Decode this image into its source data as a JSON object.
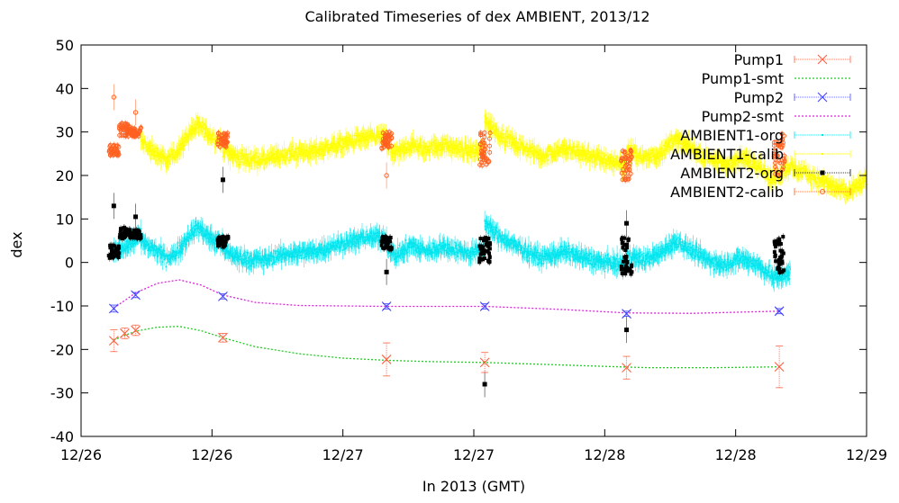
{
  "chart_data": {
    "type": "scatter",
    "title": "Calibrated Timeseries of dex AMBIENT, 2013/12",
    "xlabel": "In 2013 (GMT)",
    "ylabel": "dex",
    "xlim": [
      "2013-12-26T00:00",
      "2013-12-29T00:00"
    ],
    "ylim": [
      -40,
      50
    ],
    "y_ticks": [
      -40,
      -30,
      -20,
      -10,
      0,
      10,
      20,
      30,
      40,
      50
    ],
    "x_ticks": [
      {
        "t": "2013-12-26T00:00",
        "label": "12/26"
      },
      {
        "t": "2013-12-26T12:00",
        "label": "12/26"
      },
      {
        "t": "2013-12-27T00:00",
        "label": "12/27"
      },
      {
        "t": "2013-12-27T12:00",
        "label": "12/27"
      },
      {
        "t": "2013-12-28T00:00",
        "label": "12/28"
      },
      {
        "t": "2013-12-28T12:00",
        "label": "12/28"
      },
      {
        "t": "2013-12-29T00:00",
        "label": "12/29"
      },
      {
        "t": "2013-12-29T12:00",
        "label": "12/29"
      }
    ],
    "grid": false,
    "legend_position": "top-right",
    "series": [
      {
        "name": "Pump1",
        "style": "points-errorbars",
        "marker": "x",
        "color": "#ff6040",
        "points": [
          {
            "t": "2013-12-26T03:00",
            "y": -18.0,
            "err": 2.5
          },
          {
            "t": "2013-12-26T04:00",
            "y": -16.3,
            "err": 1.2
          },
          {
            "t": "2013-12-26T05:00",
            "y": -15.6,
            "err": 1.2
          },
          {
            "t": "2013-12-26T13:00",
            "y": -17.3,
            "err": 1.0
          },
          {
            "t": "2013-12-27T04:00",
            "y": -22.3,
            "err": 3.8
          },
          {
            "t": "2013-12-27T13:00",
            "y": -23.0,
            "err": 2.3
          },
          {
            "t": "2013-12-28T02:00",
            "y": -24.2,
            "err": 2.6
          },
          {
            "t": "2013-12-28T16:00",
            "y": -24.0,
            "err": 4.8
          }
        ]
      },
      {
        "name": "Pump1-smt",
        "style": "dashed-line",
        "color": "#22cc22",
        "points": [
          {
            "t": "2013-12-26T03:00",
            "y": -17.8
          },
          {
            "t": "2013-12-26T05:00",
            "y": -15.8
          },
          {
            "t": "2013-12-26T07:00",
            "y": -14.9
          },
          {
            "t": "2013-12-26T09:00",
            "y": -14.7
          },
          {
            "t": "2013-12-26T11:00",
            "y": -15.7
          },
          {
            "t": "2013-12-26T13:00",
            "y": -17.3
          },
          {
            "t": "2013-12-26T16:00",
            "y": -19.4
          },
          {
            "t": "2013-12-26T20:00",
            "y": -21.0
          },
          {
            "t": "2013-12-27T00:00",
            "y": -22.0
          },
          {
            "t": "2013-12-27T04:00",
            "y": -22.5
          },
          {
            "t": "2013-12-27T08:00",
            "y": -22.8
          },
          {
            "t": "2013-12-27T13:00",
            "y": -23.0
          },
          {
            "t": "2013-12-27T18:00",
            "y": -23.4
          },
          {
            "t": "2013-12-28T00:00",
            "y": -23.9
          },
          {
            "t": "2013-12-28T04:00",
            "y": -24.2
          },
          {
            "t": "2013-12-28T10:00",
            "y": -24.2
          },
          {
            "t": "2013-12-28T16:00",
            "y": -24.0
          }
        ]
      },
      {
        "name": "Pump2",
        "style": "points-errorbars",
        "marker": "x",
        "color": "#4444ff",
        "points": [
          {
            "t": "2013-12-26T03:00",
            "y": -10.6,
            "err": 0.8
          },
          {
            "t": "2013-12-26T05:00",
            "y": -7.5,
            "err": 0.6
          },
          {
            "t": "2013-12-26T13:00",
            "y": -7.8,
            "err": 0.6
          },
          {
            "t": "2013-12-27T04:00",
            "y": -10.1,
            "err": 0.6
          },
          {
            "t": "2013-12-27T13:00",
            "y": -10.1,
            "err": 0.6
          },
          {
            "t": "2013-12-28T02:00",
            "y": -11.8,
            "err": 0.6
          },
          {
            "t": "2013-12-28T16:00",
            "y": -11.2,
            "err": 0.6
          }
        ]
      },
      {
        "name": "Pump2-smt",
        "style": "dashed-line",
        "color": "#dd22dd",
        "points": [
          {
            "t": "2013-12-26T03:00",
            "y": -10.5
          },
          {
            "t": "2013-12-26T05:00",
            "y": -7.0
          },
          {
            "t": "2013-12-26T07:00",
            "y": -4.8
          },
          {
            "t": "2013-12-26T09:00",
            "y": -4.0
          },
          {
            "t": "2013-12-26T11:00",
            "y": -5.2
          },
          {
            "t": "2013-12-26T13:00",
            "y": -7.5
          },
          {
            "t": "2013-12-26T16:00",
            "y": -9.2
          },
          {
            "t": "2013-12-26T20:00",
            "y": -9.9
          },
          {
            "t": "2013-12-27T04:00",
            "y": -10.1
          },
          {
            "t": "2013-12-27T13:00",
            "y": -10.1
          },
          {
            "t": "2013-12-27T20:00",
            "y": -10.8
          },
          {
            "t": "2013-12-28T02:00",
            "y": -11.6
          },
          {
            "t": "2013-12-28T08:00",
            "y": -11.7
          },
          {
            "t": "2013-12-28T16:00",
            "y": -11.2
          }
        ]
      },
      {
        "name": "AMBIENT1-org",
        "style": "dense-points-errorbars",
        "color": "#00e5ee",
        "segments": [
          {
            "from": "2013-12-26T03:00",
            "to": "2013-12-26T05:30",
            "points": [
              [
                0,
                2.5
              ],
              [
                0.5,
                4.0
              ],
              [
                1,
                6.5
              ],
              [
                1.5,
                7.5
              ],
              [
                2,
                5.0
              ],
              [
                2.5,
                6.0
              ]
            ]
          },
          {
            "from": "2013-12-26T05:30",
            "to": "2013-12-26T13:00",
            "points": [
              [
                0,
                5.0
              ],
              [
                0.1,
                3.5
              ],
              [
                0.2,
                2.5
              ],
              [
                0.3,
                1.0
              ],
              [
                0.4,
                1.5
              ],
              [
                0.5,
                4.0
              ],
              [
                0.6,
                6.5
              ],
              [
                0.7,
                8.0
              ],
              [
                0.8,
                6.5
              ],
              [
                0.9,
                5.0
              ],
              [
                1.0,
                4.5
              ]
            ]
          },
          {
            "from": "2013-12-26T13:00",
            "to": "2013-12-27T04:00",
            "points": [
              [
                0,
                3.0
              ],
              [
                0.1,
                1.0
              ],
              [
                0.25,
                0.5
              ],
              [
                0.4,
                2.0
              ],
              [
                0.55,
                2.5
              ],
              [
                0.7,
                4.0
              ],
              [
                0.85,
                5.5
              ],
              [
                1.0,
                6.0
              ]
            ]
          },
          {
            "from": "2013-12-27T04:00",
            "to": "2013-12-27T13:00",
            "points": [
              [
                0,
                3.5
              ],
              [
                0.1,
                1.5
              ],
              [
                0.25,
                4.0
              ],
              [
                0.4,
                2.5
              ],
              [
                0.55,
                3.5
              ],
              [
                0.7,
                3.0
              ],
              [
                0.85,
                2.0
              ],
              [
                1.0,
                3.0
              ]
            ]
          },
          {
            "from": "2013-12-27T13:00",
            "to": "2013-12-28T02:00",
            "points": [
              [
                0,
                9.0
              ],
              [
                0.1,
                6.0
              ],
              [
                0.2,
                4.0
              ],
              [
                0.3,
                2.5
              ],
              [
                0.4,
                1.0
              ],
              [
                0.55,
                2.5
              ],
              [
                0.7,
                1.0
              ],
              [
                0.85,
                0.0
              ],
              [
                1.0,
                -0.5
              ]
            ]
          },
          {
            "from": "2013-12-28T02:00",
            "to": "2013-12-28T17:00",
            "points": [
              [
                0,
                2.0
              ],
              [
                0.1,
                0.5
              ],
              [
                0.2,
                2.0
              ],
              [
                0.3,
                5.0
              ],
              [
                0.4,
                2.5
              ],
              [
                0.5,
                0.5
              ],
              [
                0.6,
                -0.5
              ],
              [
                0.7,
                1.0
              ],
              [
                0.8,
                -0.5
              ],
              [
                0.9,
                -3.5
              ],
              [
                1.0,
                -2.5
              ]
            ]
          }
        ]
      },
      {
        "name": "AMBIENT1-calib",
        "style": "dense-points-errorbars",
        "color": "#ffff00",
        "segments": [
          {
            "from": "2013-12-26T05:30",
            "to": "2013-12-26T13:00",
            "points": [
              [
                0,
                28.0
              ],
              [
                0.1,
                26.0
              ],
              [
                0.2,
                25.0
              ],
              [
                0.3,
                23.5
              ],
              [
                0.4,
                24.5
              ],
              [
                0.5,
                27.0
              ],
              [
                0.6,
                30.0
              ],
              [
                0.7,
                31.5
              ],
              [
                0.8,
                30.0
              ],
              [
                0.9,
                28.5
              ],
              [
                1.0,
                28.0
              ]
            ]
          },
          {
            "from": "2013-12-26T13:00",
            "to": "2013-12-27T04:00",
            "points": [
              [
                0,
                26.0
              ],
              [
                0.1,
                24.0
              ],
              [
                0.25,
                23.5
              ],
              [
                0.4,
                25.0
              ],
              [
                0.55,
                25.5
              ],
              [
                0.7,
                27.0
              ],
              [
                0.85,
                28.5
              ],
              [
                1.0,
                29.0
              ]
            ]
          },
          {
            "from": "2013-12-27T04:00",
            "to": "2013-12-27T13:00",
            "points": [
              [
                0,
                26.5
              ],
              [
                0.1,
                25.0
              ],
              [
                0.25,
                27.0
              ],
              [
                0.4,
                26.0
              ],
              [
                0.55,
                27.0
              ],
              [
                0.7,
                26.5
              ],
              [
                0.85,
                25.5
              ],
              [
                1.0,
                26.0
              ]
            ]
          },
          {
            "from": "2013-12-27T13:00",
            "to": "2013-12-28T02:00",
            "points": [
              [
                0,
                33.0
              ],
              [
                0.1,
                29.5
              ],
              [
                0.2,
                27.5
              ],
              [
                0.3,
                26.0
              ],
              [
                0.4,
                24.5
              ],
              [
                0.55,
                26.0
              ],
              [
                0.7,
                25.0
              ],
              [
                0.85,
                23.5
              ],
              [
                1.0,
                22.5
              ]
            ]
          },
          {
            "from": "2013-12-28T02:00",
            "to": "2013-12-29T00:00",
            "points": [
              [
                0,
                26.0
              ],
              [
                0.07,
                24.0
              ],
              [
                0.14,
                25.0
              ],
              [
                0.2,
                28.5
              ],
              [
                0.27,
                26.0
              ],
              [
                0.34,
                24.0
              ],
              [
                0.41,
                22.5
              ],
              [
                0.48,
                24.0
              ],
              [
                0.55,
                22.5
              ],
              [
                0.6,
                19.0
              ],
              [
                0.68,
                22.0
              ],
              [
                0.76,
                20.0
              ],
              [
                0.84,
                18.0
              ],
              [
                0.92,
                16.0
              ],
              [
                1.0,
                19.0
              ]
            ]
          }
        ]
      },
      {
        "name": "AMBIENT2-org",
        "style": "points-errorbars",
        "marker": "filled-square",
        "color": "#000000",
        "clusters": [
          {
            "t": "2013-12-26T03:00",
            "ymin": 1.0,
            "ymax": 4.0,
            "outliers": [
              13.0
            ]
          },
          {
            "t": "2013-12-26T04:00",
            "ymin": 5.5,
            "ymax": 8.0,
            "outliers": []
          },
          {
            "t": "2013-12-26T05:00",
            "ymin": 5.5,
            "ymax": 7.5,
            "outliers": [
              10.5
            ]
          },
          {
            "t": "2013-12-26T13:00",
            "ymin": 3.5,
            "ymax": 6.0,
            "outliers": [
              19.0
            ]
          },
          {
            "t": "2013-12-27T04:00",
            "ymin": 3.0,
            "ymax": 6.0,
            "outliers": [
              -2.2
            ]
          },
          {
            "t": "2013-12-27T13:00",
            "ymin": 0.0,
            "ymax": 6.0,
            "outliers": [
              -28.0
            ]
          },
          {
            "t": "2013-12-28T02:00",
            "ymin": -3.5,
            "ymax": 6.0,
            "outliers": [
              -15.5,
              9.0
            ]
          },
          {
            "t": "2013-12-28T16:00",
            "ymin": -2.5,
            "ymax": 6.0,
            "outliers": []
          }
        ]
      },
      {
        "name": "AMBIENT2-calib",
        "style": "points-errorbars",
        "marker": "open-circle",
        "color": "#ff6020",
        "clusters": [
          {
            "t": "2013-12-26T03:00",
            "ymin": 24.5,
            "ymax": 27.0,
            "outliers": [
              38.0
            ]
          },
          {
            "t": "2013-12-26T04:00",
            "ymin": 29.0,
            "ymax": 32.0,
            "outliers": []
          },
          {
            "t": "2013-12-26T05:00",
            "ymin": 29.0,
            "ymax": 31.0,
            "outliers": [
              34.5
            ]
          },
          {
            "t": "2013-12-26T13:00",
            "ymin": 26.5,
            "ymax": 30.0,
            "outliers": []
          },
          {
            "t": "2013-12-27T04:00",
            "ymin": 26.0,
            "ymax": 30.0,
            "outliers": [
              20.0
            ]
          },
          {
            "t": "2013-12-27T13:00",
            "ymin": 22.0,
            "ymax": 30.0,
            "outliers": []
          },
          {
            "t": "2013-12-28T02:00",
            "ymin": 18.0,
            "ymax": 26.0,
            "outliers": []
          },
          {
            "t": "2013-12-28T16:00",
            "ymin": 20.0,
            "ymax": 30.0,
            "outliers": []
          }
        ]
      }
    ]
  }
}
